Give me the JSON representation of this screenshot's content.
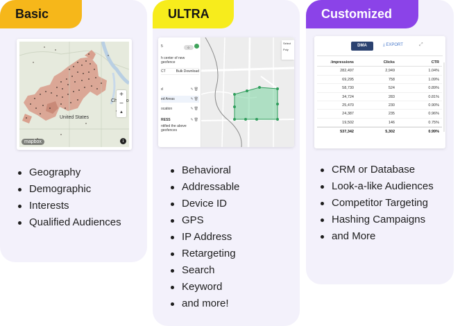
{
  "cards": {
    "basic": {
      "title": "Basic",
      "accent": "#f6b71a",
      "features": [
        "Geography",
        "Demographic",
        "Interests",
        "Qualified Audiences"
      ],
      "map": {
        "label_country": "United States",
        "label_city": "Chicago",
        "logo": "mapbox",
        "zoom_in": "+",
        "zoom_out": "−",
        "compass": "▲",
        "info": "i"
      }
    },
    "ultra": {
      "title": "ULTRA",
      "accent": "#f7ec1c",
      "features": [
        "Behavioral",
        "Addressable",
        "Device ID",
        "GPS",
        "IP Address",
        "Retargeting",
        "Search",
        "Keyword",
        "and more!"
      ],
      "panel": {
        "count_label": "5",
        "toggle_label": "0",
        "center_text": "h center of new geofence",
        "tab_left": "CT",
        "tab_right": "Bulk Download",
        "rows": [
          "d",
          "ed Areas",
          "ocation",
          "RESS"
        ],
        "footer": "ntified the above geofences",
        "select_label": "Select",
        "select_value": "Poly"
      }
    },
    "custom": {
      "title": "Customized",
      "accent": "#8b43e8",
      "features": [
        "CRM or Database",
        "Look-a-like Audiences",
        "Competitor Targeting",
        "Hashing Campaigns",
        "and More"
      ],
      "table": {
        "dma_label": "DMA",
        "export_label": "EXPORT",
        "columns": [
          "Impressions",
          "Clicks",
          "CTR"
        ],
        "rows": [
          [
            "282,497",
            "2,949",
            "1.04%"
          ],
          [
            "69,295",
            "758",
            "1.09%"
          ],
          [
            "58,730",
            "524",
            "0.89%"
          ],
          [
            "34,724",
            "283",
            "0.81%"
          ],
          [
            "25,470",
            "230",
            "0.90%"
          ],
          [
            "24,387",
            "235",
            "0.96%"
          ],
          [
            "19,502",
            "146",
            "0.75%"
          ]
        ],
        "total": [
          "537,342",
          "5,302",
          "0.99%"
        ]
      }
    }
  }
}
